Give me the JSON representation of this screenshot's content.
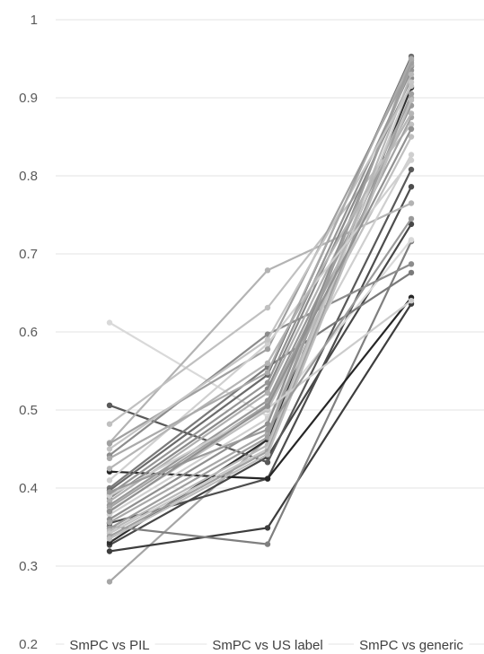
{
  "chart_data": {
    "type": "line",
    "categories": [
      "SmPC vs PIL",
      "SmPC vs US label",
      "SmPC vs generic"
    ],
    "ylim": [
      0.2,
      1
    ],
    "yticks": [
      0.2,
      0.3,
      0.4,
      0.5,
      0.6,
      0.7,
      0.8,
      0.9,
      1
    ],
    "ytick_labels": [
      "0.2",
      "0.3",
      "0.4",
      "0.5",
      "0.6",
      "0.7",
      "0.8",
      "0.9",
      "1"
    ],
    "grid": true,
    "marker": "circle",
    "series": [
      {
        "values": [
          0.28,
          0.463,
          0.948
        ],
        "color": "#a6a6a6"
      },
      {
        "values": [
          0.319,
          0.349,
          0.636
        ],
        "color": "#3d3d3d"
      },
      {
        "values": [
          0.327,
          0.44,
          0.738
        ],
        "color": "#474747"
      },
      {
        "values": [
          0.33,
          0.462,
          0.913
        ],
        "color": "#2e2e2e"
      },
      {
        "values": [
          0.351,
          0.328,
          0.716
        ],
        "color": "#7f7f7f"
      },
      {
        "values": [
          0.355,
          0.412,
          0.786
        ],
        "color": "#4d4d4d"
      },
      {
        "values": [
          0.421,
          0.412,
          0.644
        ],
        "color": "#262626"
      },
      {
        "values": [
          0.506,
          0.433,
          0.808
        ],
        "color": "#595959"
      },
      {
        "values": [
          0.612,
          0.492,
          0.718
        ],
        "color": "#d9d9d9"
      },
      {
        "values": [
          0.458,
          0.679,
          0.765
        ],
        "color": "#b3b3b3"
      },
      {
        "values": [
          0.482,
          0.631,
          0.866
        ],
        "color": "#c0c0c0"
      },
      {
        "values": [
          0.442,
          0.597,
          0.687
        ],
        "color": "#8c8c8c"
      },
      {
        "values": [
          0.457,
          0.578,
          0.941
        ],
        "color": "#a0a0a0"
      },
      {
        "values": [
          0.4,
          0.555,
          0.676
        ],
        "color": "#7a7a7a"
      },
      {
        "values": [
          0.397,
          0.545,
          0.953
        ],
        "color": "#6b6b6b"
      },
      {
        "values": [
          0.392,
          0.535,
          0.935
        ],
        "color": "#959595"
      },
      {
        "values": [
          0.387,
          0.527,
          0.925
        ],
        "color": "#8a8a8a"
      },
      {
        "values": [
          0.383,
          0.522,
          0.9
        ],
        "color": "#b0b0b0"
      },
      {
        "values": [
          0.378,
          0.512,
          0.89
        ],
        "color": "#999999"
      },
      {
        "values": [
          0.375,
          0.507,
          0.875
        ],
        "color": "#a3a3a3"
      },
      {
        "values": [
          0.371,
          0.5,
          0.85
        ],
        "color": "#bfbfbf"
      },
      {
        "values": [
          0.366,
          0.489,
          0.827
        ],
        "color": "#cfcfcf"
      },
      {
        "values": [
          0.36,
          0.482,
          0.94
        ],
        "color": "#8f8f8f"
      },
      {
        "values": [
          0.356,
          0.47,
          0.942
        ],
        "color": "#a8a8a8"
      },
      {
        "values": [
          0.348,
          0.465,
          0.945
        ],
        "color": "#9e9e9e"
      },
      {
        "values": [
          0.345,
          0.455,
          0.93
        ],
        "color": "#b8b8b8"
      },
      {
        "values": [
          0.342,
          0.45,
          0.92
        ],
        "color": "#c7c7c7"
      },
      {
        "values": [
          0.338,
          0.447,
          0.905
        ],
        "color": "#a0a0a0"
      },
      {
        "values": [
          0.335,
          0.443,
          0.897
        ],
        "color": "#bdbdbd"
      },
      {
        "values": [
          0.39,
          0.502,
          0.64
        ],
        "color": "#cccccc"
      },
      {
        "values": [
          0.395,
          0.475,
          0.745
        ],
        "color": "#9a9a9a"
      },
      {
        "values": [
          0.41,
          0.585,
          0.82
        ],
        "color": "#d0d0d0"
      },
      {
        "values": [
          0.425,
          0.56,
          0.88
        ],
        "color": "#b5b5b5"
      },
      {
        "values": [
          0.45,
          0.59,
          0.915
        ],
        "color": "#c4c4c4"
      },
      {
        "values": [
          0.438,
          0.548,
          0.95
        ],
        "color": "#aaaaaa"
      },
      {
        "values": [
          0.37,
          0.505,
          0.86
        ],
        "color": "#919191"
      }
    ]
  }
}
